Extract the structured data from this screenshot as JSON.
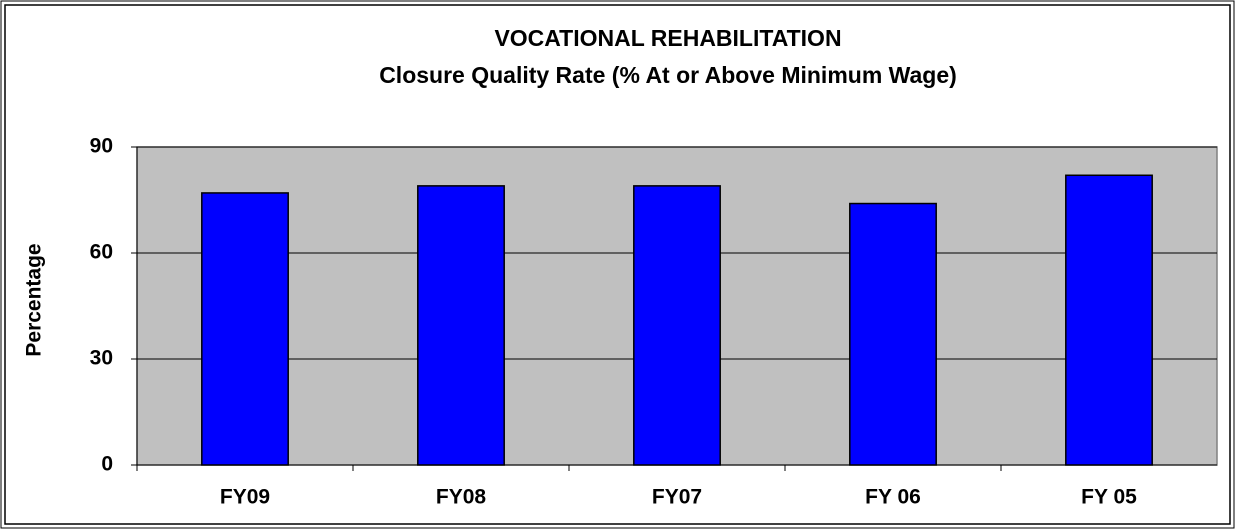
{
  "chart_data": {
    "type": "bar",
    "title": "VOCATIONAL REHABILITATION",
    "subtitle": "Closure Quality Rate (% At or Above Minimum Wage)",
    "y_label": "Percentage",
    "categories": [
      "FY09",
      "FY08",
      "FY07",
      "FY 06",
      "FY 05"
    ],
    "values": [
      77,
      79,
      79,
      74,
      82
    ],
    "color": "#0000ff",
    "ylim": [
      0,
      90
    ],
    "yticks": [
      0,
      30,
      60,
      90
    ],
    "grid": true
  }
}
